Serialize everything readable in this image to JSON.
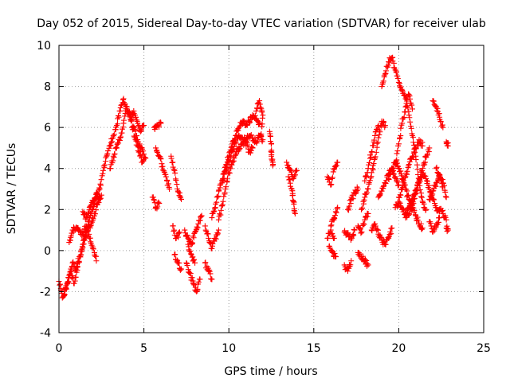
{
  "chart_data": {
    "type": "scatter",
    "title": "Day 052 of 2015, Sidereal Day-to-day VTEC variation (SDTVAR) for receiver ulab",
    "xlabel": "GPS time / hours",
    "ylabel": "SDTVAR / TECUs",
    "xlim": [
      0,
      25
    ],
    "ylim": [
      -4,
      10
    ],
    "xticks": [
      "0",
      "5",
      "10",
      "15",
      "20",
      "25"
    ],
    "yticks": [
      "-4",
      "-2",
      "0",
      "2",
      "4",
      "6",
      "8",
      "10"
    ],
    "grid": true,
    "marker": "+",
    "marker_color": "#ff0000",
    "segments": [
      [
        [
          0.0,
          -1.5
        ],
        [
          0.2,
          -2.3
        ],
        [
          0.4,
          -1.8
        ],
        [
          0.6,
          -1.2
        ],
        [
          0.8,
          -0.6
        ],
        [
          1.0,
          -0.9
        ],
        [
          1.2,
          -0.3
        ],
        [
          1.4,
          0.3
        ],
        [
          1.6,
          0.9
        ],
        [
          1.8,
          1.6
        ],
        [
          2.0,
          2.0
        ],
        [
          2.2,
          2.6
        ],
        [
          2.4,
          3.0
        ],
        [
          2.6,
          3.9
        ],
        [
          2.8,
          4.6
        ],
        [
          3.0,
          5.1
        ],
        [
          3.2,
          5.6
        ],
        [
          3.4,
          6.1
        ],
        [
          3.6,
          6.8
        ],
        [
          3.8,
          7.4
        ],
        [
          4.0,
          6.9
        ],
        [
          4.2,
          6.5
        ],
        [
          4.4,
          6.0
        ],
        [
          4.6,
          5.4
        ],
        [
          4.8,
          5.0
        ],
        [
          5.0,
          4.7
        ]
      ],
      [
        [
          0.3,
          -2.2
        ],
        [
          0.5,
          -1.6
        ],
        [
          0.7,
          -1.0
        ],
        [
          0.9,
          -1.6
        ],
        [
          1.1,
          -0.8
        ],
        [
          1.3,
          -0.2
        ],
        [
          1.5,
          0.5
        ],
        [
          1.7,
          1.0
        ],
        [
          1.9,
          1.3
        ],
        [
          2.1,
          1.8
        ],
        [
          2.3,
          2.4
        ],
        [
          2.5,
          2.7
        ]
      ],
      [
        [
          0.6,
          0.4
        ],
        [
          0.8,
          1.0
        ],
        [
          1.0,
          1.1
        ],
        [
          1.2,
          1.0
        ],
        [
          1.4,
          0.8
        ],
        [
          1.6,
          1.2
        ],
        [
          1.8,
          0.6
        ],
        [
          2.0,
          0.1
        ],
        [
          2.2,
          -0.5
        ]
      ],
      [
        [
          1.4,
          1.9
        ],
        [
          1.6,
          1.6
        ],
        [
          1.8,
          2.1
        ],
        [
          2.0,
          2.4
        ],
        [
          2.2,
          2.8
        ],
        [
          2.4,
          2.5
        ]
      ],
      [
        [
          3.0,
          4.0
        ],
        [
          3.2,
          4.6
        ],
        [
          3.4,
          5.0
        ],
        [
          3.6,
          5.5
        ],
        [
          3.8,
          6.2
        ],
        [
          4.0,
          7.0
        ],
        [
          4.2,
          6.4
        ],
        [
          4.4,
          6.8
        ],
        [
          4.6,
          6.3
        ],
        [
          4.8,
          5.8
        ],
        [
          5.0,
          6.1
        ]
      ],
      [
        [
          4.3,
          6.0
        ],
        [
          4.5,
          5.4
        ],
        [
          4.7,
          4.8
        ],
        [
          4.9,
          4.3
        ],
        [
          5.1,
          4.5
        ]
      ],
      [
        [
          5.6,
          6.0
        ],
        [
          5.8,
          6.1
        ],
        [
          6.0,
          6.2
        ]
      ],
      [
        [
          5.7,
          5.0
        ],
        [
          5.9,
          4.6
        ],
        [
          6.1,
          4.1
        ],
        [
          6.3,
          3.6
        ],
        [
          6.5,
          3.0
        ]
      ],
      [
        [
          5.5,
          2.6
        ],
        [
          5.7,
          2.1
        ],
        [
          5.9,
          2.3
        ]
      ],
      [
        [
          6.6,
          4.6
        ],
        [
          6.8,
          3.9
        ],
        [
          7.0,
          2.9
        ],
        [
          7.2,
          2.5
        ]
      ],
      [
        [
          6.7,
          1.2
        ],
        [
          6.9,
          0.6
        ],
        [
          7.1,
          0.9
        ]
      ],
      [
        [
          6.8,
          -0.2
        ],
        [
          7.0,
          -0.6
        ],
        [
          7.2,
          -0.9
        ]
      ],
      [
        [
          7.4,
          1.0
        ],
        [
          7.6,
          0.6
        ],
        [
          7.8,
          0.3
        ],
        [
          8.0,
          0.9
        ],
        [
          8.2,
          1.3
        ],
        [
          8.4,
          1.7
        ]
      ],
      [
        [
          7.5,
          -0.6
        ],
        [
          7.7,
          -1.1
        ],
        [
          7.9,
          -1.6
        ],
        [
          8.1,
          -2.0
        ],
        [
          8.3,
          -1.4
        ]
      ],
      [
        [
          7.6,
          0.3
        ],
        [
          7.8,
          -0.2
        ],
        [
          8.0,
          -0.6
        ]
      ],
      [
        [
          8.6,
          -0.6
        ],
        [
          8.8,
          -1.0
        ],
        [
          9.0,
          -1.4
        ]
      ],
      [
        [
          8.6,
          1.2
        ],
        [
          8.8,
          0.6
        ],
        [
          9.0,
          0.1
        ],
        [
          9.2,
          0.6
        ],
        [
          9.4,
          1.0
        ]
      ],
      [
        [
          9.0,
          1.6
        ],
        [
          9.2,
          2.1
        ],
        [
          9.4,
          2.9
        ],
        [
          9.6,
          3.4
        ],
        [
          9.8,
          4.1
        ],
        [
          10.0,
          4.6
        ],
        [
          10.2,
          5.2
        ],
        [
          10.4,
          5.6
        ],
        [
          10.6,
          6.0
        ],
        [
          10.8,
          6.3
        ],
        [
          11.0,
          6.1
        ],
        [
          11.2,
          6.3
        ],
        [
          11.4,
          6.6
        ],
        [
          11.6,
          6.4
        ],
        [
          11.8,
          6.2
        ]
      ],
      [
        [
          9.4,
          1.5
        ],
        [
          9.6,
          2.2
        ],
        [
          9.8,
          3.0
        ],
        [
          10.0,
          3.8
        ],
        [
          10.2,
          4.3
        ],
        [
          10.4,
          4.7
        ],
        [
          10.6,
          5.0
        ],
        [
          10.8,
          5.2
        ],
        [
          11.0,
          5.4
        ],
        [
          11.2,
          5.6
        ],
        [
          11.4,
          5.5
        ],
        [
          11.6,
          5.3
        ],
        [
          11.8,
          5.6
        ],
        [
          12.0,
          5.4
        ]
      ],
      [
        [
          9.6,
          3.3
        ],
        [
          9.8,
          3.9
        ],
        [
          10.0,
          4.4
        ],
        [
          10.2,
          4.9
        ],
        [
          10.4,
          5.3
        ],
        [
          10.6,
          5.6
        ],
        [
          10.8,
          5.5
        ],
        [
          11.0,
          5.3
        ],
        [
          11.2,
          4.8
        ],
        [
          11.4,
          5.0
        ]
      ],
      [
        [
          11.6,
          6.8
        ],
        [
          11.8,
          7.3
        ],
        [
          12.0,
          6.6
        ],
        [
          11.9,
          5.6
        ]
      ],
      [
        [
          12.4,
          5.8
        ],
        [
          12.5,
          5.2
        ],
        [
          12.5,
          4.6
        ],
        [
          12.6,
          4.2
        ]
      ],
      [
        [
          13.4,
          4.3
        ],
        [
          13.6,
          3.9
        ],
        [
          13.8,
          3.5
        ],
        [
          14.0,
          3.9
        ]
      ],
      [
        [
          13.5,
          3.6
        ],
        [
          13.7,
          3.0
        ],
        [
          13.8,
          2.4
        ],
        [
          13.9,
          1.8
        ]
      ],
      [
        [
          15.8,
          3.6
        ],
        [
          16.0,
          3.2
        ],
        [
          16.2,
          4.0
        ],
        [
          16.4,
          4.3
        ]
      ],
      [
        [
          16.0,
          1.2
        ],
        [
          16.2,
          1.6
        ],
        [
          16.4,
          2.1
        ]
      ],
      [
        [
          15.8,
          0.6
        ],
        [
          16.0,
          1.0
        ],
        [
          16.2,
          0.6
        ]
      ],
      [
        [
          15.9,
          0.2
        ],
        [
          16.1,
          -0.1
        ],
        [
          16.3,
          -0.3
        ]
      ],
      [
        [
          16.8,
          -0.7
        ],
        [
          17.0,
          -1.0
        ],
        [
          17.2,
          -0.5
        ]
      ],
      [
        [
          16.8,
          0.9
        ],
        [
          17.0,
          0.8
        ],
        [
          17.2,
          0.6
        ],
        [
          17.4,
          1.0
        ]
      ],
      [
        [
          17.0,
          2.0
        ],
        [
          17.2,
          2.5
        ],
        [
          17.4,
          2.8
        ],
        [
          17.6,
          3.0
        ]
      ],
      [
        [
          17.6,
          1.2
        ],
        [
          17.8,
          0.9
        ],
        [
          18.0,
          1.5
        ],
        [
          18.2,
          1.8
        ]
      ],
      [
        [
          17.6,
          -0.1
        ],
        [
          17.8,
          -0.3
        ],
        [
          18.0,
          -0.5
        ],
        [
          18.2,
          -0.7
        ]
      ],
      [
        [
          17.8,
          2.0
        ],
        [
          18.0,
          2.6
        ],
        [
          18.2,
          3.0
        ],
        [
          18.4,
          3.8
        ],
        [
          18.6,
          4.5
        ],
        [
          18.8,
          5.5
        ],
        [
          19.0,
          6.3
        ],
        [
          19.2,
          6.1
        ]
      ],
      [
        [
          18.0,
          3.4
        ],
        [
          18.2,
          4.0
        ],
        [
          18.4,
          4.8
        ],
        [
          18.6,
          5.6
        ],
        [
          18.8,
          6.1
        ]
      ],
      [
        [
          18.4,
          1.0
        ],
        [
          18.6,
          1.3
        ],
        [
          18.8,
          0.8
        ],
        [
          19.0,
          0.5
        ],
        [
          19.2,
          0.3
        ],
        [
          19.4,
          0.6
        ],
        [
          19.6,
          1.1
        ]
      ],
      [
        [
          18.8,
          2.6
        ],
        [
          19.0,
          2.9
        ],
        [
          19.2,
          3.3
        ],
        [
          19.4,
          3.7
        ],
        [
          19.6,
          4.0
        ],
        [
          19.8,
          3.6
        ],
        [
          20.0,
          3.2
        ]
      ],
      [
        [
          19.0,
          8.0
        ],
        [
          19.2,
          8.6
        ],
        [
          19.4,
          9.2
        ],
        [
          19.6,
          9.4
        ],
        [
          19.8,
          8.8
        ],
        [
          20.0,
          8.2
        ],
        [
          20.2,
          7.8
        ],
        [
          20.4,
          7.4
        ],
        [
          20.6,
          6.6
        ],
        [
          20.8,
          5.6
        ],
        [
          21.0,
          4.6
        ],
        [
          21.2,
          3.4
        ],
        [
          21.4,
          2.4
        ],
        [
          21.6,
          2.0
        ]
      ],
      [
        [
          19.8,
          4.2
        ],
        [
          20.0,
          5.2
        ],
        [
          20.2,
          6.2
        ],
        [
          20.4,
          7.0
        ],
        [
          20.6,
          7.6
        ],
        [
          20.8,
          6.9
        ]
      ],
      [
        [
          19.4,
          3.5
        ],
        [
          19.6,
          3.9
        ],
        [
          19.8,
          4.3
        ],
        [
          20.0,
          4.0
        ],
        [
          20.2,
          3.5
        ],
        [
          20.4,
          3.0
        ],
        [
          20.6,
          2.5
        ],
        [
          20.8,
          2.1
        ],
        [
          21.0,
          1.7
        ],
        [
          21.2,
          1.3
        ],
        [
          21.4,
          1.1
        ]
      ],
      [
        [
          19.8,
          2.1
        ],
        [
          20.0,
          2.3
        ],
        [
          20.2,
          2.0
        ],
        [
          20.4,
          1.8
        ],
        [
          20.6,
          2.1
        ],
        [
          20.8,
          2.5
        ],
        [
          21.0,
          2.9
        ],
        [
          21.2,
          3.5
        ],
        [
          21.4,
          4.0
        ],
        [
          21.6,
          4.6
        ],
        [
          21.8,
          5.0
        ]
      ],
      [
        [
          20.0,
          2.6
        ],
        [
          20.2,
          3.0
        ],
        [
          20.4,
          3.6
        ],
        [
          20.6,
          4.2
        ],
        [
          20.8,
          4.6
        ],
        [
          21.0,
          5.0
        ],
        [
          21.2,
          5.4
        ],
        [
          21.4,
          5.1
        ]
      ],
      [
        [
          20.4,
          1.6
        ],
        [
          20.6,
          1.8
        ],
        [
          20.8,
          2.2
        ],
        [
          21.0,
          2.8
        ],
        [
          21.2,
          3.3
        ],
        [
          21.4,
          3.7
        ],
        [
          21.6,
          3.5
        ],
        [
          21.8,
          3.0
        ],
        [
          22.0,
          2.5
        ],
        [
          22.2,
          2.1
        ],
        [
          22.4,
          1.9
        ]
      ],
      [
        [
          21.8,
          1.4
        ],
        [
          22.0,
          0.9
        ],
        [
          22.2,
          1.2
        ],
        [
          22.4,
          1.6
        ]
      ],
      [
        [
          21.8,
          2.5
        ],
        [
          22.0,
          2.9
        ],
        [
          22.2,
          3.3
        ],
        [
          22.4,
          3.7
        ],
        [
          22.6,
          3.3
        ],
        [
          22.8,
          2.6
        ]
      ],
      [
        [
          22.0,
          7.3
        ],
        [
          22.2,
          7.0
        ],
        [
          22.4,
          6.5
        ],
        [
          22.6,
          6.0
        ]
      ],
      [
        [
          22.2,
          4.0
        ],
        [
          22.4,
          3.6
        ],
        [
          22.6,
          3.1
        ]
      ],
      [
        [
          22.4,
          2.0
        ],
        [
          22.6,
          1.8
        ],
        [
          22.8,
          1.5
        ]
      ],
      [
        [
          22.8,
          1.1
        ],
        [
          22.9,
          1.0
        ]
      ],
      [
        [
          22.8,
          5.3
        ],
        [
          22.9,
          5.1
        ]
      ]
    ]
  }
}
